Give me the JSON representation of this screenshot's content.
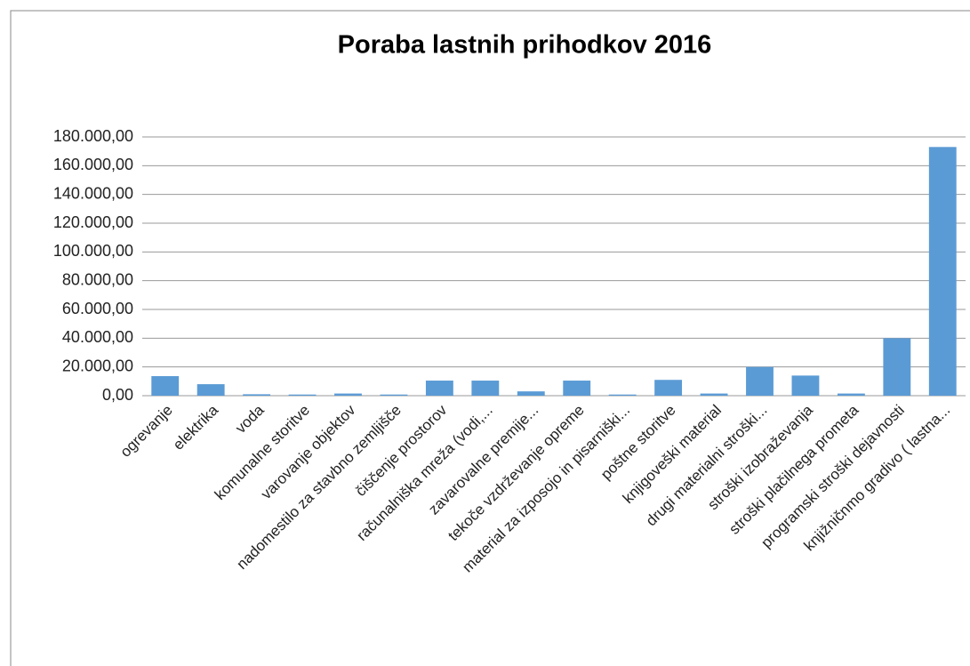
{
  "chart_data": {
    "type": "bar",
    "title": "Poraba lastnih prihodkov 2016",
    "categories": [
      "ogrevanje",
      "elektrika",
      "voda",
      "komunalne storitve",
      "varovanje objektov",
      "nadomestilo za stavbno zemljišče",
      "čiščenje prostorov",
      "računalniška mreža (vodi,...",
      "zavarovalne premije...",
      "tekoče vzdrževanje opreme",
      "material za izposojo in pisarniški...",
      "poštne storitve",
      "knjigoveški material",
      "drugi materialni stroški...",
      "stroški izobraževanja",
      "stroški plačilnega prometa",
      "programski stroški dejavnosti",
      "knjižničnmo gradivo ( lastna..."
    ],
    "values": [
      13600,
      8000,
      1000,
      800,
      1500,
      800,
      10500,
      10500,
      3000,
      10500,
      800,
      11000,
      1500,
      20000,
      14000,
      1500,
      40000,
      173000
    ],
    "color": "#5b9bd5",
    "ylim": [
      0,
      180000
    ],
    "yticks": [
      {
        "value": 0,
        "label": "0,00"
      },
      {
        "value": 20000,
        "label": "20.000,00"
      },
      {
        "value": 40000,
        "label": "40.000,00"
      },
      {
        "value": 60000,
        "label": "60.000,00"
      },
      {
        "value": 80000,
        "label": "80.000,00"
      },
      {
        "value": 100000,
        "label": "100.000,00"
      },
      {
        "value": 120000,
        "label": "120.000,00"
      },
      {
        "value": 140000,
        "label": "140.000,00"
      },
      {
        "value": 160000,
        "label": "160.000,00"
      },
      {
        "value": 180000,
        "label": "180.000,00"
      }
    ],
    "grid": true
  }
}
